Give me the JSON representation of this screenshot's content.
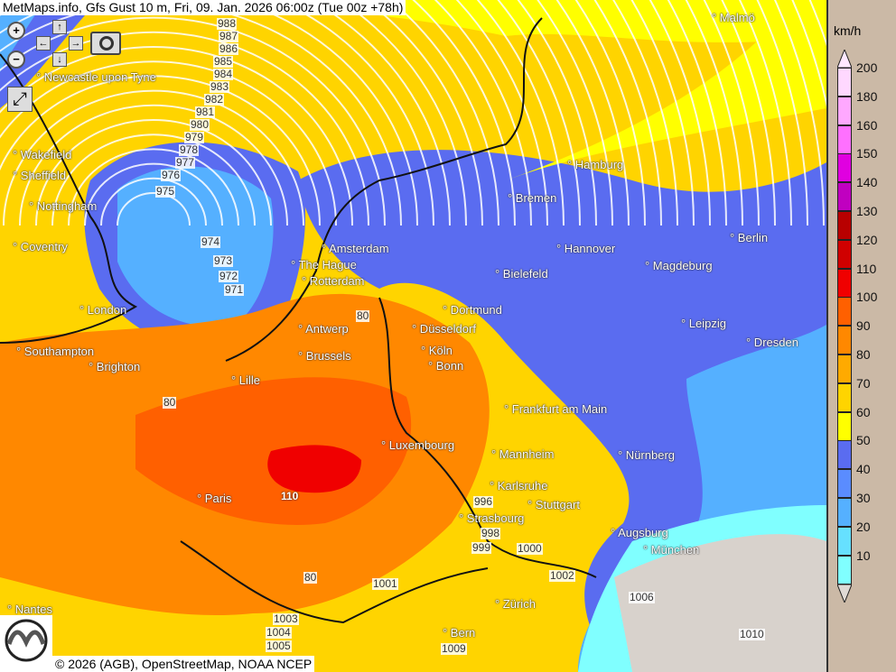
{
  "title": "MetMaps.info, Gfs Gust 10 m, Fri, 09. Jan. 2026 06:00z (Tue 00z +78h)",
  "copyright": "© 2026 (AGB), OpenStreetMap, NOAA NCEP",
  "logo_text": "METMAPS",
  "controls": {
    "zoom_in": "+",
    "zoom_out": "−",
    "pan_up": "↑",
    "pan_down": "↓",
    "pan_left": "←",
    "pan_right": "→",
    "camera_icon": "camera-icon",
    "fullscreen_icon": "fullscreen-icon"
  },
  "legend": {
    "unit": "km/h",
    "ticks": [
      "200",
      "180",
      "160",
      "150",
      "140",
      "130",
      "120",
      "110",
      "100",
      "90",
      "80",
      "70",
      "60",
      "50",
      "40",
      "30",
      "20",
      "10"
    ],
    "colors": [
      "#ffd8ff",
      "#ffa8ff",
      "#ff70ff",
      "#e000e0",
      "#c000c0",
      "#b80000",
      "#d00000",
      "#f00000",
      "#ff6000",
      "#ff8800",
      "#ffaa00",
      "#ffd400",
      "#ffff00",
      "#5a6cf0",
      "#5a8cff",
      "#55b0ff",
      "#66e0ff",
      "#80ffff"
    ]
  },
  "cities": [
    {
      "name": "Malmö"
    },
    {
      "name": "Newcastle upon Tyne"
    },
    {
      "name": "Wakefield"
    },
    {
      "name": "Sheffield"
    },
    {
      "name": "Nottingham"
    },
    {
      "name": "Coventry"
    },
    {
      "name": "London"
    },
    {
      "name": "Southampton"
    },
    {
      "name": "Brighton"
    },
    {
      "name": "Hamburg"
    },
    {
      "name": "Bremen"
    },
    {
      "name": "Amsterdam"
    },
    {
      "name": "The Hague"
    },
    {
      "name": "Rotterdam"
    },
    {
      "name": "Hannover"
    },
    {
      "name": "Berlin"
    },
    {
      "name": "Bielefeld"
    },
    {
      "name": "Magdeburg"
    },
    {
      "name": "Dortmund"
    },
    {
      "name": "Antwerp"
    },
    {
      "name": "Düsseldorf"
    },
    {
      "name": "Leipzig"
    },
    {
      "name": "Brussels"
    },
    {
      "name": "Köln"
    },
    {
      "name": "Bonn"
    },
    {
      "name": "Dresden"
    },
    {
      "name": "Lille"
    },
    {
      "name": "Frankfurt am Main"
    },
    {
      "name": "Luxembourg"
    },
    {
      "name": "Mannheim"
    },
    {
      "name": "Nürnberg"
    },
    {
      "name": "Karlsruhe"
    },
    {
      "name": "Paris"
    },
    {
      "name": "Stuttgart"
    },
    {
      "name": "Strasbourg"
    },
    {
      "name": "Augsburg"
    },
    {
      "name": "München"
    },
    {
      "name": "Zürich"
    },
    {
      "name": "Bern"
    },
    {
      "name": "Nantes"
    }
  ],
  "isobars": [
    "988",
    "987",
    "986",
    "985",
    "984",
    "983",
    "982",
    "981",
    "980",
    "979",
    "978",
    "977",
    "976",
    "975",
    "974",
    "973",
    "972",
    "971",
    "80",
    "80",
    "80",
    "110",
    "996",
    "998",
    "999",
    "1000",
    "1001",
    "1002",
    "1003",
    "1004",
    "1005",
    "1006",
    "1009",
    "1010"
  ]
}
